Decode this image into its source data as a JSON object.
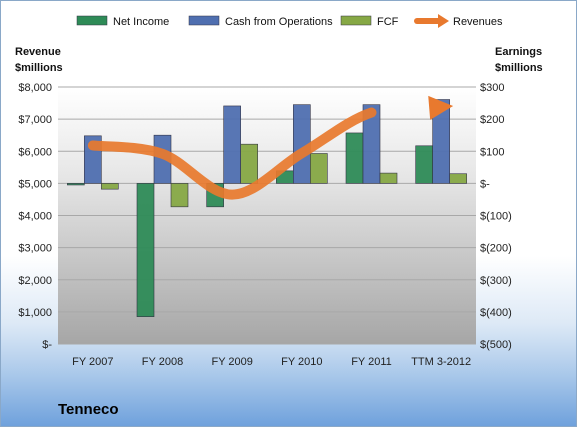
{
  "chart_data": {
    "type": "bar",
    "title": "",
    "company": "Tenneco",
    "categories": [
      "FY 2007",
      "FY 2008",
      "FY 2009",
      "FY 2010",
      "FY 2011",
      "TTM 3-2012"
    ],
    "series": [
      {
        "name": "Net Income",
        "axis": "right",
        "kind": "bar",
        "color": "#2e8b57",
        "values": [
          -5,
          -415,
          -73,
          39,
          157,
          117
        ]
      },
      {
        "name": "Cash from Operations",
        "axis": "right",
        "kind": "bar",
        "color": "#4f6fb0",
        "values": [
          148,
          150,
          241,
          245,
          245,
          261
        ]
      },
      {
        "name": "FCF",
        "axis": "right",
        "kind": "bar",
        "color": "#86a845",
        "values": [
          -18,
          -73,
          122,
          93,
          32,
          30
        ]
      },
      {
        "name": "Revenues",
        "axis": "left",
        "kind": "line",
        "color": "#e8792e",
        "values": [
          6180,
          5920,
          4650,
          5940,
          7205,
          7380
        ]
      }
    ],
    "left_axis": {
      "label_line1": "Revenue",
      "label_line2": "$millions",
      "min": 0,
      "max": 8000,
      "step": 1000,
      "tick_labels": [
        "$-",
        "$1,000",
        "$2,000",
        "$3,000",
        "$4,000",
        "$5,000",
        "$6,000",
        "$7,000",
        "$8,000"
      ]
    },
    "right_axis": {
      "label_line1": "Earnings",
      "label_line2": "$millions",
      "min": -500,
      "max": 300,
      "step": 100,
      "tick_labels": [
        "$(500)",
        "$(400)",
        "$(300)",
        "$(200)",
        "$(100)",
        "$-",
        "$100",
        "$200",
        "$300"
      ]
    },
    "grid": true,
    "legend_position": "top"
  }
}
